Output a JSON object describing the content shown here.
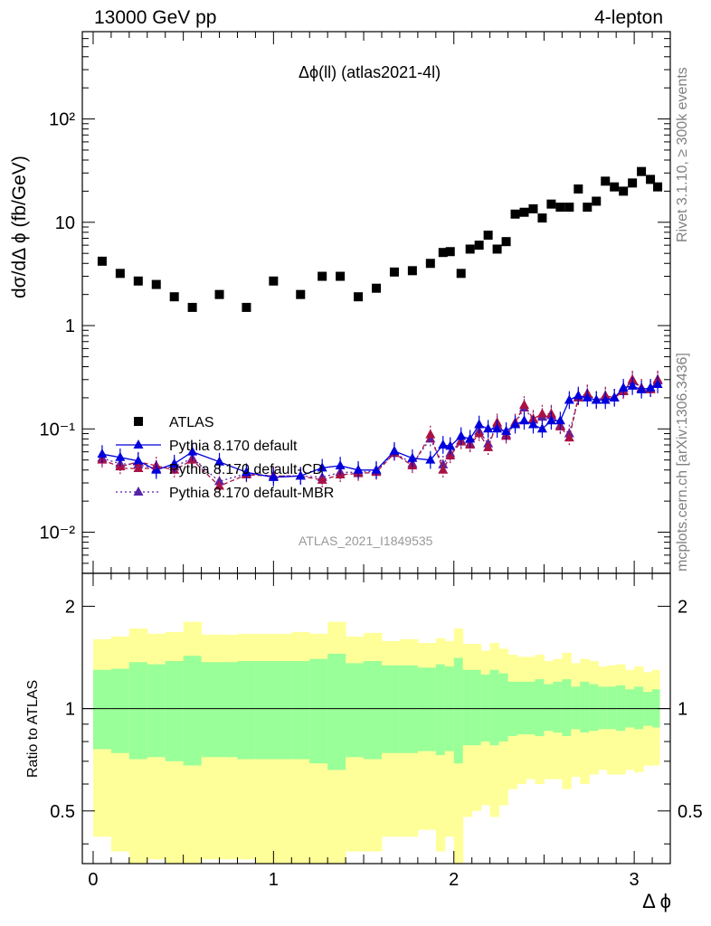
{
  "header": {
    "left": "13000 GeV pp",
    "right": "4-lepton"
  },
  "plot_title": "Δϕ(ll) (atlas2021-4l)",
  "side_texts": {
    "rivet": "Rivet 3.1.10, ≥ 300k events",
    "mcplots": "mcplots.cern.ch [arXiv:1306.3436]"
  },
  "analysis_id": "ATLAS_2021_I1849535",
  "colors": {
    "atlas": "#000000",
    "pythia_default": "#0000dd",
    "pythia_cd": "#aa1144",
    "pythia_mbr": "#5522aa",
    "band_outer": "#ffff99",
    "band_inner": "#99ff99"
  },
  "chart_data": [
    {
      "type": "scatter",
      "ylabel": "dσ/dΔ ϕ (fb/GeV)",
      "yscale": "log",
      "ylim": [
        0.004,
        700
      ],
      "xlim": [
        -0.06,
        3.2
      ],
      "yticks": [
        {
          "value": 0.01,
          "label": "10⁻²"
        },
        {
          "value": 0.1,
          "label": "10⁻¹"
        },
        {
          "value": 1,
          "label": "1"
        },
        {
          "value": 10,
          "label": "10"
        },
        {
          "value": 100,
          "label": "10²"
        }
      ],
      "legend_placement": "middle-left",
      "x": [
        0.05,
        0.15,
        0.25,
        0.35,
        0.45,
        0.55,
        0.7,
        0.85,
        1.0,
        1.15,
        1.27,
        1.37,
        1.47,
        1.57,
        1.67,
        1.77,
        1.87,
        1.94,
        1.98,
        2.04,
        2.09,
        2.14,
        2.19,
        2.24,
        2.29,
        2.34,
        2.39,
        2.44,
        2.49,
        2.54,
        2.59,
        2.64,
        2.69,
        2.74,
        2.79,
        2.84,
        2.89,
        2.94,
        2.99,
        3.04,
        3.09,
        3.13
      ],
      "series": [
        {
          "name": "ATLAS",
          "marker": "square",
          "values": [
            4.2,
            3.2,
            2.7,
            2.5,
            1.9,
            1.5,
            2.0,
            1.5,
            2.7,
            2.0,
            3.0,
            3.0,
            1.9,
            2.3,
            3.3,
            3.4,
            4.0,
            5.1,
            5.2,
            3.2,
            5.5,
            6.0,
            7.5,
            5.5,
            6.5,
            12,
            12.5,
            13.5,
            11,
            15,
            14,
            14,
            21,
            14,
            16,
            25,
            22,
            20,
            24,
            31,
            26,
            22
          ]
        },
        {
          "name": "Pythia 8.170 default",
          "marker": "triangle",
          "line": "solid",
          "values": [
            0.057,
            0.053,
            0.049,
            0.04,
            0.046,
            0.06,
            0.048,
            0.038,
            0.034,
            0.035,
            0.042,
            0.044,
            0.04,
            0.04,
            0.061,
            0.052,
            0.05,
            0.07,
            0.068,
            0.085,
            0.08,
            0.11,
            0.1,
            0.1,
            0.095,
            0.11,
            0.12,
            0.11,
            0.1,
            0.12,
            0.12,
            0.19,
            0.21,
            0.2,
            0.19,
            0.19,
            0.2,
            0.25,
            0.26,
            0.24,
            0.25,
            0.27
          ]
        },
        {
          "name": "Pythia 8.170 default-CD",
          "marker": "triangle",
          "line": "dashed",
          "values": [
            0.05,
            0.043,
            0.048,
            0.044,
            0.04,
            0.05,
            0.028,
            0.036,
            0.035,
            0.035,
            0.032,
            0.036,
            0.037,
            0.038,
            0.058,
            0.044,
            0.088,
            0.04,
            0.055,
            0.075,
            0.07,
            0.09,
            0.066,
            0.115,
            0.085,
            0.115,
            0.17,
            0.125,
            0.14,
            0.14,
            0.105,
            0.082,
            0.2,
            0.22,
            0.19,
            0.21,
            0.2,
            0.23,
            0.3,
            0.25,
            0.24,
            0.3
          ]
        },
        {
          "name": "Pythia 8.170 default-MBR",
          "marker": "triangle",
          "line": "dotted",
          "values": [
            0.052,
            0.046,
            0.045,
            0.041,
            0.043,
            0.052,
            0.031,
            0.037,
            0.035,
            0.035,
            0.034,
            0.038,
            0.038,
            0.039,
            0.059,
            0.046,
            0.08,
            0.045,
            0.058,
            0.077,
            0.072,
            0.095,
            0.072,
            0.11,
            0.088,
            0.112,
            0.16,
            0.122,
            0.13,
            0.135,
            0.108,
            0.09,
            0.2,
            0.215,
            0.19,
            0.205,
            0.2,
            0.235,
            0.29,
            0.245,
            0.242,
            0.292
          ]
        }
      ]
    },
    {
      "type": "area",
      "xlabel": "Δ ϕ",
      "ylabel": "Ratio to ATLAS",
      "yscale": "log",
      "ylim": [
        0.35,
        2.5
      ],
      "xlim": [
        -0.06,
        3.2
      ],
      "xticks": [
        0,
        1,
        2,
        3
      ],
      "yticks": [
        {
          "value": 0.5,
          "label": "0.5"
        },
        {
          "value": 1,
          "label": "1"
        },
        {
          "value": 2,
          "label": "2"
        }
      ],
      "reference_line": 1,
      "bin_edges": [
        0.0,
        0.1,
        0.2,
        0.3,
        0.4,
        0.5,
        0.6,
        0.8,
        0.9,
        1.1,
        1.2,
        1.3,
        1.4,
        1.5,
        1.6,
        1.7,
        1.8,
        1.9,
        1.95,
        2.0,
        2.05,
        2.1,
        2.15,
        2.2,
        2.25,
        2.3,
        2.35,
        2.4,
        2.45,
        2.5,
        2.55,
        2.6,
        2.65,
        2.7,
        2.75,
        2.8,
        2.85,
        2.9,
        2.95,
        3.0,
        3.05,
        3.1,
        3.14
      ],
      "bands": {
        "inner_upper": [
          1.3,
          1.31,
          1.37,
          1.35,
          1.38,
          1.43,
          1.37,
          1.38,
          1.38,
          1.38,
          1.4,
          1.45,
          1.36,
          1.38,
          1.34,
          1.34,
          1.32,
          1.35,
          1.33,
          1.41,
          1.3,
          1.3,
          1.26,
          1.3,
          1.27,
          1.2,
          1.2,
          1.2,
          1.22,
          1.18,
          1.2,
          1.22,
          1.16,
          1.2,
          1.18,
          1.16,
          1.16,
          1.17,
          1.14,
          1.16,
          1.12,
          1.14
        ],
        "inner_lower": [
          0.76,
          0.74,
          0.71,
          0.72,
          0.7,
          0.68,
          0.72,
          0.71,
          0.71,
          0.71,
          0.69,
          0.66,
          0.72,
          0.71,
          0.74,
          0.74,
          0.75,
          0.73,
          0.75,
          0.69,
          0.78,
          0.78,
          0.8,
          0.78,
          0.8,
          0.83,
          0.84,
          0.84,
          0.83,
          0.86,
          0.85,
          0.83,
          0.87,
          0.85,
          0.86,
          0.87,
          0.87,
          0.86,
          0.88,
          0.87,
          0.89,
          0.88
        ],
        "outer_upper": [
          1.6,
          1.63,
          1.72,
          1.66,
          1.68,
          1.8,
          1.65,
          1.66,
          1.66,
          1.68,
          1.66,
          1.8,
          1.63,
          1.67,
          1.58,
          1.6,
          1.56,
          1.61,
          1.58,
          1.72,
          1.55,
          1.55,
          1.48,
          1.56,
          1.5,
          1.44,
          1.42,
          1.42,
          1.44,
          1.38,
          1.4,
          1.46,
          1.36,
          1.4,
          1.38,
          1.33,
          1.34,
          1.35,
          1.3,
          1.33,
          1.28,
          1.3
        ],
        "outer_lower": [
          0.42,
          0.38,
          0.33,
          0.36,
          0.32,
          0.32,
          0.36,
          0.36,
          0.34,
          0.34,
          0.34,
          0.3,
          0.38,
          0.38,
          0.42,
          0.42,
          0.44,
          0.38,
          0.42,
          0.32,
          0.48,
          0.5,
          0.52,
          0.48,
          0.52,
          0.58,
          0.6,
          0.62,
          0.6,
          0.62,
          0.62,
          0.58,
          0.63,
          0.6,
          0.64,
          0.66,
          0.64,
          0.64,
          0.66,
          0.65,
          0.68,
          0.68
        ]
      }
    }
  ]
}
